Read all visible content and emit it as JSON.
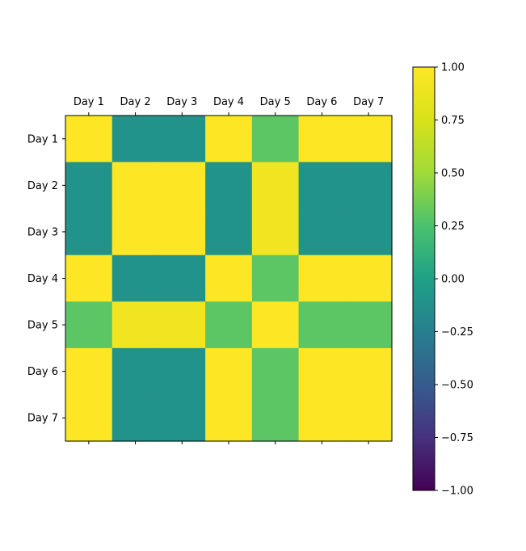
{
  "chart_data": {
    "type": "heatmap",
    "title": "",
    "xlabel": "",
    "ylabel": "",
    "x_categories": [
      "Day 1",
      "Day 2",
      "Day 3",
      "Day 4",
      "Day 5",
      "Day 6",
      "Day 7"
    ],
    "y_categories": [
      "Day 1",
      "Day 2",
      "Day 3",
      "Day 4",
      "Day 5",
      "Day 6",
      "Day 7"
    ],
    "x_tick_position": "top",
    "values": [
      [
        1.0,
        -0.1,
        -0.1,
        1.0,
        0.3,
        1.0,
        1.0
      ],
      [
        -0.1,
        1.0,
        1.0,
        -0.1,
        0.92,
        -0.1,
        -0.1
      ],
      [
        -0.1,
        1.0,
        1.0,
        -0.1,
        0.92,
        -0.1,
        -0.1
      ],
      [
        1.0,
        -0.1,
        -0.1,
        1.0,
        0.3,
        1.0,
        1.0
      ],
      [
        0.3,
        0.92,
        0.92,
        0.3,
        1.0,
        0.3,
        0.3
      ],
      [
        1.0,
        -0.1,
        -0.1,
        1.0,
        0.3,
        1.0,
        1.0
      ],
      [
        1.0,
        -0.1,
        -0.1,
        1.0,
        0.3,
        1.0,
        1.0
      ]
    ],
    "colorbar": {
      "colormap": "viridis",
      "range": [
        -1.0,
        1.0
      ],
      "ticks": [
        1.0,
        0.75,
        0.5,
        0.25,
        0.0,
        -0.25,
        -0.5,
        -0.75,
        -1.0
      ],
      "tick_labels": [
        "1.00",
        "0.75",
        "0.50",
        "0.25",
        "0.00",
        "−0.25",
        "−0.50",
        "−0.75",
        "−1.00"
      ]
    },
    "grid": false
  }
}
